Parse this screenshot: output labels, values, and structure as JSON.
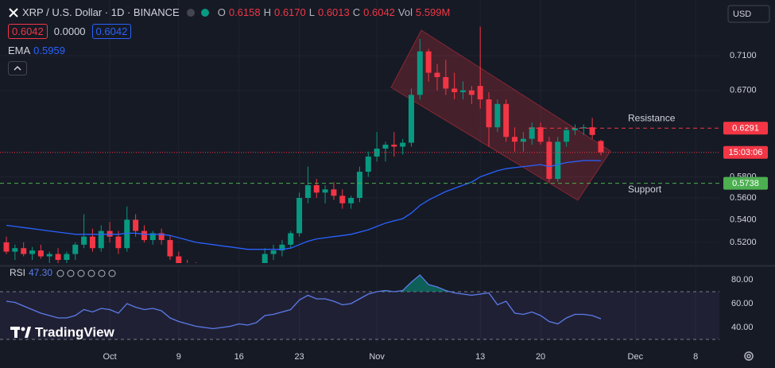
{
  "header": {
    "symbol": "XRP / U.S. Dollar · 1D · BINANCE",
    "ohlc": [
      {
        "label": "O",
        "value": "0.6158"
      },
      {
        "label": "H",
        "value": "0.6170"
      },
      {
        "label": "L",
        "value": "0.6013"
      },
      {
        "label": "C",
        "value": "0.6042"
      },
      {
        "label": "Vol",
        "value": "5.599M"
      }
    ],
    "price_boxes": [
      "0.6042",
      "0.0000",
      "0.6042"
    ],
    "currency": "USD",
    "branding": "TradingView"
  },
  "chart_data": [
    {
      "type": "candlestick",
      "up_color": "#089981",
      "down_color": "#f23645",
      "log_scale": true,
      "grid": true,
      "open": [
        0.52,
        0.512,
        0.515,
        0.51,
        0.513,
        0.508,
        0.51,
        0.505,
        0.51,
        0.518,
        0.525,
        0.515,
        0.53,
        0.525,
        0.515,
        0.54,
        0.53,
        0.522,
        0.528,
        0.522,
        0.508,
        0.5,
        0.498,
        0.495,
        0.497,
        0.493,
        0.495,
        0.492,
        0.494,
        0.49,
        0.492,
        0.51,
        0.513,
        0.518,
        0.528,
        0.56,
        0.572,
        0.565,
        0.568,
        0.562,
        0.555,
        0.56,
        0.585,
        0.6,
        0.608,
        0.612,
        0.61,
        0.614,
        0.665,
        0.715,
        0.69,
        0.685,
        0.672,
        0.668,
        0.67,
        0.675,
        0.66,
        0.63,
        0.655,
        0.62,
        0.615,
        0.618,
        0.63,
        0.615,
        0.578,
        0.615,
        0.627,
        0.629,
        0.63,
        0.6158
      ],
      "high": [
        0.525,
        0.518,
        0.52,
        0.516,
        0.518,
        0.512,
        0.515,
        0.512,
        0.52,
        0.545,
        0.532,
        0.535,
        0.538,
        0.53,
        0.552,
        0.545,
        0.535,
        0.53,
        0.532,
        0.526,
        0.512,
        0.505,
        0.503,
        0.5,
        0.502,
        0.499,
        0.5,
        0.498,
        0.5,
        0.496,
        0.515,
        0.518,
        0.522,
        0.53,
        0.565,
        0.59,
        0.578,
        0.572,
        0.575,
        0.568,
        0.562,
        0.59,
        0.605,
        0.625,
        0.615,
        0.625,
        0.618,
        0.672,
        0.73,
        0.718,
        0.7,
        0.705,
        0.69,
        0.68,
        0.675,
        0.745,
        0.668,
        0.66,
        0.66,
        0.63,
        0.625,
        0.635,
        0.635,
        0.62,
        0.62,
        0.63,
        0.633,
        0.633,
        0.64,
        0.617
      ],
      "low": [
        0.51,
        0.505,
        0.508,
        0.505,
        0.506,
        0.502,
        0.5,
        0.5,
        0.505,
        0.515,
        0.512,
        0.512,
        0.52,
        0.51,
        0.512,
        0.525,
        0.52,
        0.518,
        0.518,
        0.505,
        0.495,
        0.492,
        0.49,
        0.488,
        0.49,
        0.487,
        0.488,
        0.486,
        0.488,
        0.484,
        0.49,
        0.505,
        0.508,
        0.515,
        0.525,
        0.555,
        0.56,
        0.555,
        0.558,
        0.55,
        0.55,
        0.556,
        0.58,
        0.595,
        0.595,
        0.6,
        0.602,
        0.61,
        0.66,
        0.68,
        0.67,
        0.665,
        0.66,
        0.66,
        0.655,
        0.65,
        0.61,
        0.625,
        0.615,
        0.605,
        0.605,
        0.612,
        0.612,
        0.575,
        0.575,
        0.61,
        0.622,
        0.622,
        0.618,
        0.6013
      ],
      "close": [
        0.512,
        0.515,
        0.51,
        0.513,
        0.508,
        0.51,
        0.505,
        0.51,
        0.518,
        0.525,
        0.515,
        0.53,
        0.525,
        0.515,
        0.54,
        0.53,
        0.522,
        0.528,
        0.522,
        0.508,
        0.5,
        0.498,
        0.495,
        0.497,
        0.493,
        0.495,
        0.492,
        0.494,
        0.49,
        0.492,
        0.51,
        0.513,
        0.518,
        0.528,
        0.56,
        0.572,
        0.565,
        0.568,
        0.562,
        0.555,
        0.56,
        0.585,
        0.6,
        0.608,
        0.612,
        0.61,
        0.614,
        0.665,
        0.715,
        0.69,
        0.685,
        0.672,
        0.668,
        0.67,
        0.665,
        0.66,
        0.63,
        0.655,
        0.62,
        0.615,
        0.618,
        0.63,
        0.615,
        0.578,
        0.615,
        0.627,
        0.629,
        0.63,
        0.622,
        0.6042
      ],
      "ema": {
        "name": "EMA",
        "value_label": "0.5959",
        "color": "#2962ff",
        "values": [
          0.535,
          0.534,
          0.533,
          0.532,
          0.531,
          0.53,
          0.529,
          0.528,
          0.527,
          0.527,
          0.527,
          0.527,
          0.527,
          0.527,
          0.528,
          0.528,
          0.527,
          0.527,
          0.527,
          0.526,
          0.524,
          0.522,
          0.52,
          0.519,
          0.518,
          0.517,
          0.516,
          0.515,
          0.514,
          0.514,
          0.514,
          0.514,
          0.514,
          0.515,
          0.518,
          0.521,
          0.523,
          0.524,
          0.525,
          0.526,
          0.527,
          0.529,
          0.531,
          0.534,
          0.537,
          0.539,
          0.541,
          0.546,
          0.553,
          0.558,
          0.562,
          0.566,
          0.569,
          0.572,
          0.575,
          0.58,
          0.583,
          0.586,
          0.588,
          0.589,
          0.59,
          0.591,
          0.592,
          0.59,
          0.592,
          0.594,
          0.595,
          0.596,
          0.596,
          0.5959
        ]
      },
      "levels": [
        {
          "label": "Resistance",
          "value": 0.6291,
          "color": "#f23645"
        },
        {
          "label": "Support",
          "value": 0.5738,
          "color": "#4caf50"
        }
      ],
      "last_price": {
        "value": 0.6042,
        "countdown": "15:03:06",
        "color": "#f23645"
      },
      "xlim": [
        -0.74,
        82.75
      ],
      "xticks": [
        {
          "value": 12,
          "label": "Oct"
        },
        {
          "value": 20,
          "label": "9"
        },
        {
          "value": 27,
          "label": "16"
        },
        {
          "value": 34,
          "label": "23"
        },
        {
          "value": 43,
          "label": "Nov"
        },
        {
          "value": 55,
          "label": "13"
        },
        {
          "value": 62,
          "label": "20"
        },
        {
          "value": 73,
          "label": "Dec"
        },
        {
          "value": 80,
          "label": "8"
        }
      ],
      "ylim": [
        0.503,
        0.779
      ],
      "yticks": [
        {
          "value": 0.52,
          "label": "0.5200"
        },
        {
          "value": 0.54,
          "label": "0.5400"
        },
        {
          "value": 0.56,
          "label": "0.5600"
        },
        {
          "value": 0.58,
          "label": "0.5800"
        },
        {
          "value": 0.67,
          "label": "0.6700"
        },
        {
          "value": 0.71,
          "label": "0.7100"
        }
      ]
    },
    {
      "type": "line",
      "value_label": "47.30",
      "series": [
        {
          "name": "RSI",
          "color": "#5b7ce8",
          "values": [
            62,
            61,
            58,
            55,
            52,
            50,
            48,
            48,
            50,
            55,
            53,
            56,
            55,
            52,
            60,
            57,
            55,
            56,
            54,
            48,
            45,
            43,
            41,
            40,
            39,
            40,
            41,
            43,
            42,
            44,
            50,
            51,
            53,
            55,
            63,
            67,
            64,
            64,
            62,
            59,
            60,
            64,
            68,
            70,
            71,
            70,
            71,
            78,
            84,
            76,
            74,
            71,
            69,
            68,
            67,
            68,
            69,
            59,
            62,
            52,
            51,
            53,
            50,
            45,
            43,
            48,
            51,
            51,
            50,
            47.3
          ]
        }
      ],
      "bands": [
        30,
        70
      ],
      "ylim": [
        26.7,
        88
      ],
      "yticks": [
        {
          "value": 80,
          "label": "80.00"
        },
        {
          "value": 60,
          "label": "60.00"
        },
        {
          "value": 40,
          "label": "40.00"
        }
      ]
    }
  ]
}
